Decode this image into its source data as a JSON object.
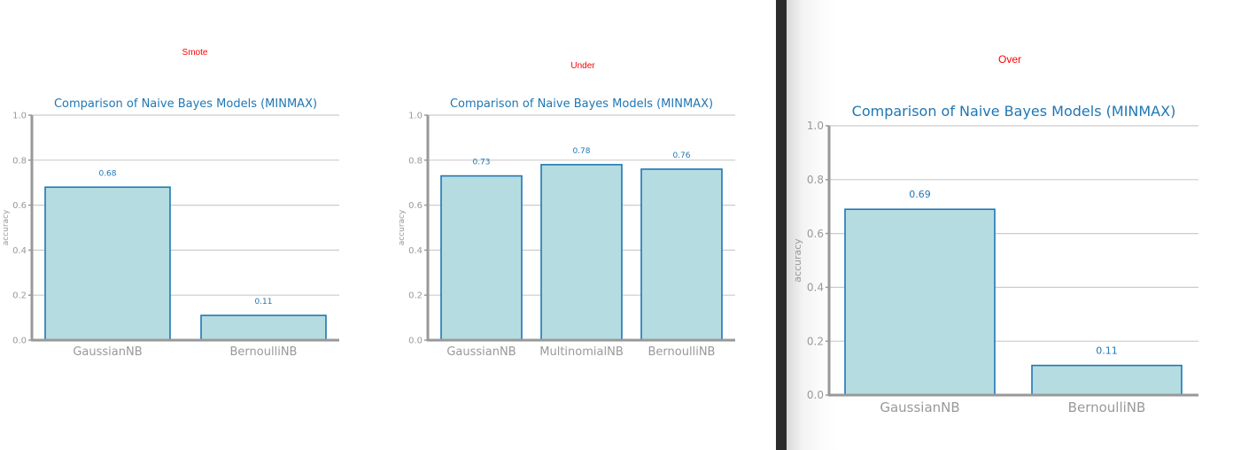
{
  "colors": {
    "bar_fill": "#b5dde1",
    "bar_edge": "#1f77b4",
    "title": "#1f77b4",
    "caption": "#ff0000",
    "grid": "#cccccc",
    "axis": "#999999"
  },
  "chart_data": [
    {
      "caption": "Smote",
      "type": "bar",
      "title": "Comparison of Naive Bayes Models (MINMAX)",
      "ylabel": "accuracy",
      "ylim": [
        0,
        1.0
      ],
      "yticks": [
        "0.0",
        "0.2",
        "0.4",
        "0.6",
        "0.8",
        "1.0"
      ],
      "categories": [
        "GaussianNB",
        "BernoulliNB"
      ],
      "values": [
        0.68,
        0.11
      ],
      "data_labels": [
        "0.68",
        "0.11"
      ],
      "grid": true
    },
    {
      "caption": "Under",
      "type": "bar",
      "title": "Comparison of Naive Bayes Models (MINMAX)",
      "ylabel": "accuracy",
      "ylim": [
        0,
        1.0
      ],
      "yticks": [
        "0.0",
        "0.2",
        "0.4",
        "0.6",
        "0.8",
        "1.0"
      ],
      "categories": [
        "GaussianNB",
        "MultinomialNB",
        "BernoulliNB"
      ],
      "values": [
        0.73,
        0.78,
        0.76
      ],
      "data_labels": [
        "0.73",
        "0.78",
        "0.76"
      ],
      "grid": true
    },
    {
      "caption": "Over",
      "type": "bar",
      "title": "Comparison of Naive Bayes Models (MINMAX)",
      "ylabel": "accuracy",
      "ylim": [
        0,
        1.0
      ],
      "yticks": [
        "0.0",
        "0.2",
        "0.4",
        "0.6",
        "0.8",
        "1.0"
      ],
      "categories": [
        "GaussianNB",
        "BernoulliNB"
      ],
      "values": [
        0.69,
        0.11
      ],
      "data_labels": [
        "0.69",
        "0.11"
      ],
      "grid": true
    }
  ]
}
